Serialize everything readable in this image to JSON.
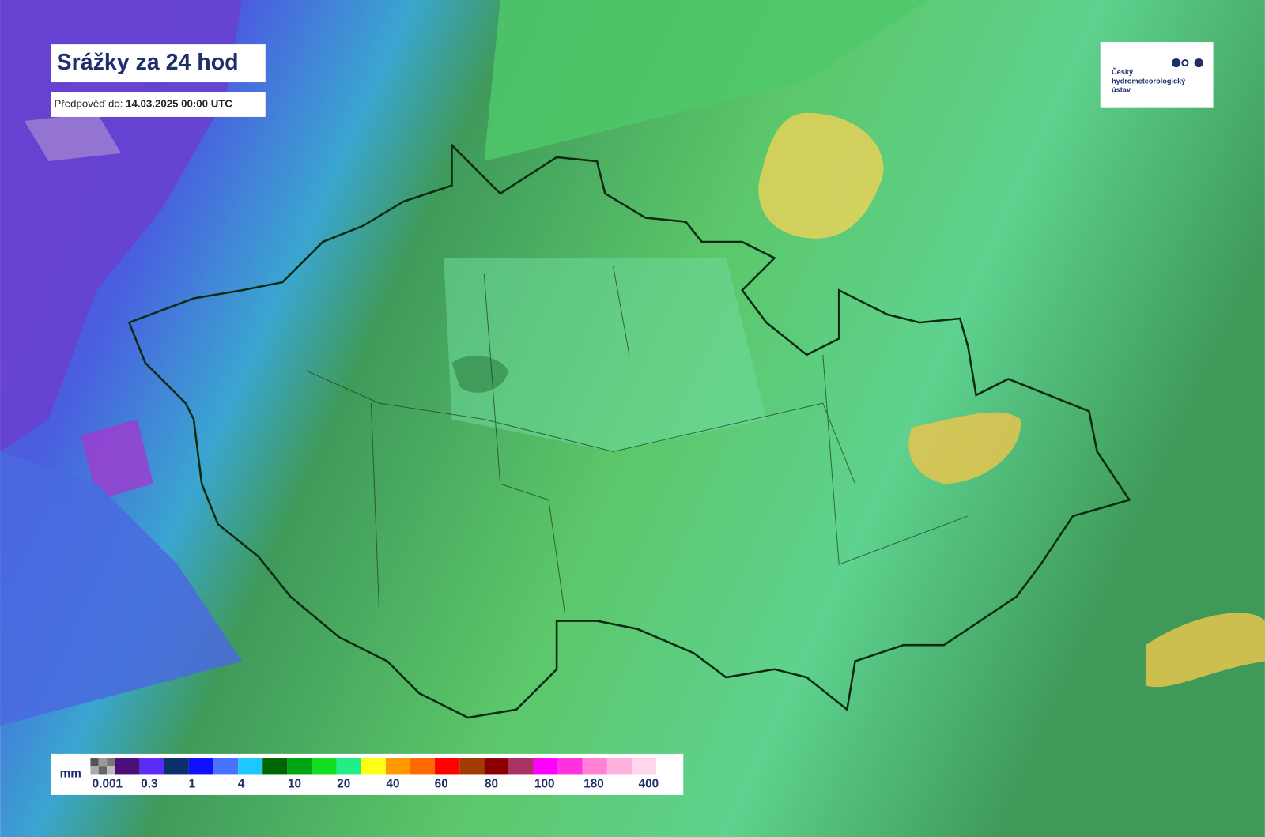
{
  "header": {
    "title": "Srážky za 24 hod",
    "forecast_label": "Předpověď do:",
    "forecast_time": "14.03.2025 00:00 UTC"
  },
  "logo": {
    "lines": [
      "Český",
      "hydrometeorologický",
      "ústav"
    ]
  },
  "legend": {
    "unit": "mm",
    "colors": [
      "#777777",
      "#4b0f7a",
      "#5b2cf5",
      "#0b2f6b",
      "#1010ff",
      "#4a72ff",
      "#1ec8ff",
      "#006400",
      "#00a514",
      "#11dd22",
      "#22ee88",
      "#ffff11",
      "#ff9900",
      "#ff6a00",
      "#ff0000",
      "#a33a00",
      "#8a0000",
      "#a83266",
      "#ff00ff",
      "#ff33dd",
      "#ff80d5",
      "#ffb0dc",
      "#ffd6ec"
    ],
    "labels": [
      0.001,
      0.3,
      1,
      4,
      10,
      20,
      40,
      60,
      80,
      100,
      180,
      400
    ]
  }
}
